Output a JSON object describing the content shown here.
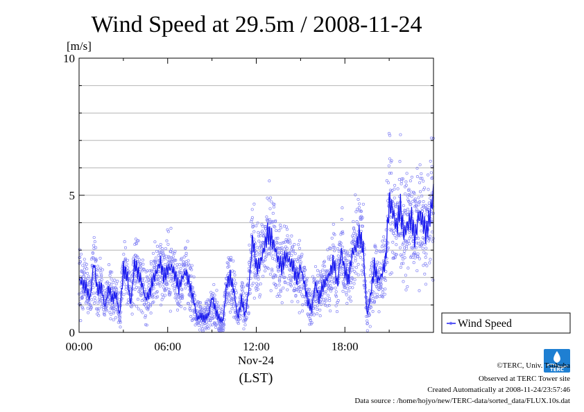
{
  "chart_data": {
    "type": "scatter",
    "title": "Wind Speed at 29.5m / 2008-11-24",
    "ylabel": "[m/s]",
    "xlabel": "(LST)",
    "date_label": "Nov-24",
    "xlim": [
      "00:00",
      "24:00"
    ],
    "ylim": [
      0,
      10
    ],
    "yticks": [
      {
        "value": 0,
        "label": "0"
      },
      {
        "value": 5,
        "label": "5"
      },
      {
        "value": 10,
        "label": "10"
      }
    ],
    "ygrid": [
      1,
      2,
      3,
      4,
      5,
      6,
      7,
      8,
      9
    ],
    "xticks": [
      {
        "value": "00:00",
        "label": "00:00"
      },
      {
        "value": "06:00",
        "label": "06:00"
      },
      {
        "value": "12:00",
        "label": "12:00"
      },
      {
        "value": "18:00",
        "label": "18:00"
      }
    ],
    "grid": true,
    "legend": {
      "position": "right",
      "entries": [
        {
          "label": "Wind Speed"
        }
      ]
    },
    "colors": {
      "line": "#1a1aee",
      "points": "#8080f4",
      "grid": "#b4b4b4"
    },
    "series": [
      {
        "name": "Wind Speed",
        "x_hours": [
          0.0,
          0.25,
          0.5,
          0.75,
          1.0,
          1.25,
          1.5,
          1.75,
          2.0,
          2.25,
          2.5,
          2.75,
          3.0,
          3.25,
          3.5,
          3.75,
          4.0,
          4.25,
          4.5,
          4.75,
          5.0,
          5.25,
          5.5,
          5.75,
          6.0,
          6.25,
          6.5,
          6.75,
          7.0,
          7.25,
          7.5,
          7.75,
          8.0,
          8.25,
          8.5,
          8.75,
          9.0,
          9.25,
          9.5,
          9.75,
          10.0,
          10.25,
          10.5,
          10.75,
          11.0,
          11.25,
          11.5,
          11.75,
          12.0,
          12.25,
          12.5,
          12.75,
          13.0,
          13.25,
          13.5,
          13.75,
          14.0,
          14.25,
          14.5,
          14.75,
          15.0,
          15.25,
          15.5,
          15.75,
          16.0,
          16.25,
          16.5,
          16.75,
          17.0,
          17.25,
          17.5,
          17.75,
          18.0,
          18.25,
          18.5,
          18.75,
          19.0,
          19.25,
          19.5,
          19.75,
          20.0,
          20.25,
          20.5,
          20.75,
          21.0,
          21.25,
          21.5,
          21.75,
          22.0,
          22.25,
          22.5,
          22.75,
          23.0,
          23.25,
          23.5,
          23.75,
          24.0
        ],
        "values": [
          1.9,
          1.8,
          1.6,
          1.2,
          2.6,
          1.5,
          1.7,
          0.9,
          1.6,
          1.2,
          1.4,
          0.6,
          2.3,
          2.1,
          1.0,
          2.5,
          2.2,
          1.8,
          1.2,
          1.4,
          1.9,
          2.2,
          2.6,
          2.0,
          2.3,
          2.4,
          2.1,
          1.6,
          2.0,
          2.2,
          1.7,
          1.2,
          0.5,
          0.6,
          0.5,
          0.6,
          1.3,
          0.8,
          0.5,
          0.4,
          1.8,
          2.0,
          1.5,
          0.5,
          1.2,
          0.6,
          1.6,
          3.5,
          2.4,
          2.5,
          3.0,
          3.6,
          3.5,
          3.1,
          2.6,
          2.4,
          2.8,
          2.6,
          2.4,
          1.9,
          2.4,
          1.8,
          1.1,
          0.8,
          1.8,
          1.2,
          1.7,
          1.9,
          2.2,
          2.6,
          1.7,
          3.0,
          2.2,
          1.9,
          2.9,
          3.1,
          3.6,
          3.0,
          0.6,
          1.4,
          2.4,
          1.9,
          2.1,
          2.6,
          4.8,
          4.4,
          3.8,
          4.6,
          3.6,
          3.9,
          4.2,
          3.4,
          4.3,
          4.1,
          3.6,
          4.2,
          5.1
        ]
      }
    ]
  },
  "footer": {
    "credit": "©TERC, Univ. Tsukuba",
    "observed": "Observed at TERC Tower site",
    "created": "Created Automatically at 2008-11-24/23:57:46",
    "source": "Data source : /home/hojyo/new/TERC-data/sorted_data/FLUX.10s.dat"
  },
  "logo": {
    "text": "TERC"
  }
}
